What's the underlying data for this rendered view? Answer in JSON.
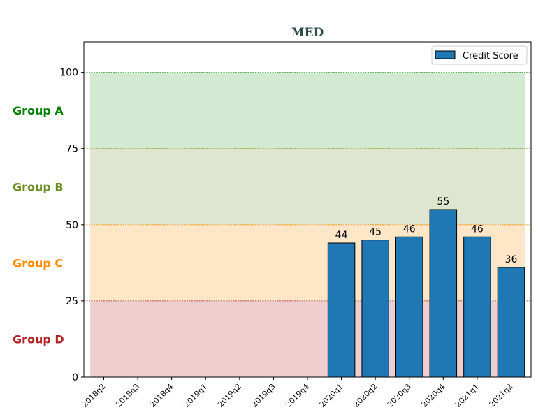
{
  "chart_data": {
    "type": "bar",
    "title": "MED",
    "title_color": "#2f4f4f",
    "categories": [
      "2018q2",
      "2018q3",
      "2018q4",
      "2019q1",
      "2019q2",
      "2019q3",
      "2019q4",
      "2020q1",
      "2020q2",
      "2020q3",
      "2020q4",
      "2021q1",
      "2021q2"
    ],
    "series": [
      {
        "name": "Credit Score",
        "values": [
          null,
          null,
          null,
          null,
          null,
          null,
          null,
          44,
          45,
          46,
          55,
          46,
          36
        ],
        "color": "#1f77b4"
      }
    ],
    "ylim": [
      0,
      110
    ],
    "yticks": [
      0,
      25,
      50,
      75,
      100
    ],
    "xlabel": "",
    "ylabel": "",
    "legend_position": "top-right",
    "bands": [
      {
        "label": "Group A",
        "from": 75,
        "to": 100,
        "fill": "#2ca02c",
        "text_color": "#008000",
        "line_color": "#2ca02c"
      },
      {
        "label": "Group B",
        "from": 50,
        "to": 75,
        "fill": "#6b8e23",
        "text_color": "#6b8e23",
        "line_color": "#8b8b00"
      },
      {
        "label": "Group C",
        "from": 25,
        "to": 50,
        "fill": "#ff8c00",
        "text_color": "#ff8c00",
        "line_color": "#ff8c00"
      },
      {
        "label": "Group D",
        "from": 0,
        "to": 25,
        "fill": "#b22222",
        "text_color": "#b22222",
        "line_color": "#b22222"
      }
    ]
  }
}
